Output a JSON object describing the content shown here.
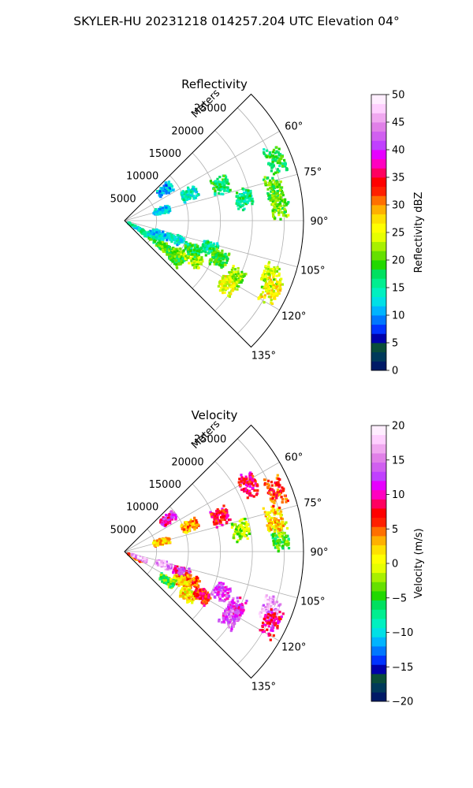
{
  "figure": {
    "suptitle": "SKYLER-HU  20231218  014257.204 UTC Elevation 04°"
  },
  "chart_data": [
    {
      "type": "heatmap",
      "projection": "polar-sector",
      "title": "Reflectivity",
      "range_label": "Meters",
      "range_ticks": [
        5000,
        10000,
        15000,
        20000,
        25000
      ],
      "range_tick_labels": [
        "5000",
        "10000",
        "15000",
        "20000",
        "25000"
      ],
      "rmax": 28000,
      "theta_ticks": [
        60,
        75,
        90,
        105,
        120,
        135
      ],
      "theta_tick_labels": [
        "60°",
        "75°",
        "90°",
        "105°",
        "120°",
        "135°"
      ],
      "theta_range": [
        45,
        135
      ],
      "theta_zero": "north",
      "theta_direction": "clockwise",
      "grid": true,
      "colorbar": {
        "label": "Reflectivity dBZ",
        "min": 0,
        "max": 50,
        "ticks": [
          0,
          5,
          10,
          15,
          20,
          25,
          30,
          35,
          40,
          45,
          50
        ],
        "tick_labels": [
          "0",
          "5",
          "10",
          "15",
          "20",
          "25",
          "30",
          "35",
          "40",
          "45",
          "50"
        ],
        "colors": [
          "#001a66",
          "#003a5a",
          "#0a4d3a",
          "#0000aa",
          "#0033ff",
          "#0077ff",
          "#00b4ff",
          "#00e0e6",
          "#00f0c0",
          "#00ee90",
          "#00e060",
          "#22d800",
          "#66e000",
          "#a8f000",
          "#e6ff00",
          "#ffff00",
          "#ffe000",
          "#ffb000",
          "#ff7000",
          "#ff2000",
          "#ff0000",
          "#ff0060",
          "#ff00c0",
          "#e600ff",
          "#c040ff",
          "#d060f0",
          "#e080e8",
          "#f0a8f0",
          "#ffd0ff",
          "#ffeeff"
        ]
      },
      "echo_regions": [
        {
          "az": 120,
          "range_km": 2.0,
          "value": 14
        },
        {
          "az": 122,
          "range_km": 4.5,
          "value": 17
        },
        {
          "az": 116,
          "range_km": 5.5,
          "value": 13
        },
        {
          "az": 111,
          "range_km": 6.0,
          "value": 12
        },
        {
          "az": 110,
          "range_km": 8.5,
          "value": 13
        },
        {
          "az": 124,
          "range_km": 7.5,
          "value": 20
        },
        {
          "az": 122,
          "range_km": 10.0,
          "value": 22
        },
        {
          "az": 127,
          "range_km": 10.0,
          "value": 19
        },
        {
          "az": 119,
          "range_km": 12.5,
          "value": 23
        },
        {
          "az": 113,
          "range_km": 11.5,
          "value": 18
        },
        {
          "az": 108,
          "range_km": 14.0,
          "value": 16
        },
        {
          "az": 112,
          "range_km": 16.0,
          "value": 20
        },
        {
          "az": 117,
          "range_km": 19.5,
          "value": 22
        },
        {
          "az": 122,
          "range_km": 19.0,
          "value": 25
        },
        {
          "az": 111,
          "range_km": 24.5,
          "value": 23
        },
        {
          "az": 115,
          "range_km": 25.5,
          "value": 26
        },
        {
          "az": 85,
          "range_km": 24.5,
          "value": 21
        },
        {
          "az": 78,
          "range_km": 24.0,
          "value": 20
        },
        {
          "az": 68,
          "range_km": 25.5,
          "value": 18
        },
        {
          "az": 80,
          "range_km": 19.0,
          "value": 16
        },
        {
          "az": 70,
          "range_km": 16.0,
          "value": 17
        },
        {
          "az": 68,
          "range_km": 11.0,
          "value": 14
        },
        {
          "az": 53,
          "range_km": 8.0,
          "value": 11
        },
        {
          "az": 75,
          "range_km": 6.0,
          "value": 12
        }
      ]
    },
    {
      "type": "heatmap",
      "projection": "polar-sector",
      "title": "Velocity",
      "range_label": "Meters",
      "range_ticks": [
        5000,
        10000,
        15000,
        20000,
        25000
      ],
      "range_tick_labels": [
        "5000",
        "10000",
        "15000",
        "20000",
        "25000"
      ],
      "rmax": 28000,
      "theta_ticks": [
        60,
        75,
        90,
        105,
        120,
        135
      ],
      "theta_tick_labels": [
        "60°",
        "75°",
        "90°",
        "105°",
        "120°",
        "135°"
      ],
      "theta_range": [
        45,
        135
      ],
      "theta_zero": "north",
      "theta_direction": "clockwise",
      "grid": true,
      "colorbar": {
        "label": "Velocity (m/s)",
        "min": -20,
        "max": 20,
        "ticks": [
          -20,
          -15,
          -10,
          -5,
          0,
          5,
          10,
          15,
          20
        ],
        "tick_labels": [
          "−20",
          "−15",
          "−10",
          "−5",
          "0",
          "5",
          "10",
          "15",
          "20"
        ],
        "colors": [
          "#001a66",
          "#003a5a",
          "#0a4d3a",
          "#0000aa",
          "#0033ff",
          "#0077ff",
          "#00b4ff",
          "#00e0e6",
          "#00f0c0",
          "#00ee90",
          "#00e060",
          "#22d800",
          "#66e000",
          "#a8f000",
          "#e6ff00",
          "#ffff00",
          "#ffe000",
          "#ffb000",
          "#ff7000",
          "#ff2000",
          "#ff0000",
          "#ff0060",
          "#ff00c0",
          "#e600ff",
          "#c040ff",
          "#d060f0",
          "#e080e8",
          "#f0a8f0",
          "#ffd0ff",
          "#ffeeff"
        ]
      },
      "echo_regions": [
        {
          "az": 120,
          "range_km": 2.0,
          "value": 4
        },
        {
          "az": 113,
          "range_km": 2.5,
          "value": 16
        },
        {
          "az": 108,
          "range_km": 6.5,
          "value": 16
        },
        {
          "az": 110,
          "range_km": 9.5,
          "value": 11
        },
        {
          "az": 114,
          "range_km": 11.5,
          "value": 5
        },
        {
          "az": 118,
          "range_km": 10.0,
          "value": 2
        },
        {
          "az": 124,
          "range_km": 8.0,
          "value": -4
        },
        {
          "az": 124,
          "range_km": 12.0,
          "value": 1
        },
        {
          "az": 120,
          "range_km": 14.0,
          "value": 7
        },
        {
          "az": 112,
          "range_km": 16.5,
          "value": 13
        },
        {
          "az": 117,
          "range_km": 19.5,
          "value": 12
        },
        {
          "az": 122,
          "range_km": 19.5,
          "value": 13
        },
        {
          "az": 111,
          "range_km": 24.5,
          "value": 16
        },
        {
          "az": 116,
          "range_km": 25.5,
          "value": 9
        },
        {
          "az": 85,
          "range_km": 24.5,
          "value": -4
        },
        {
          "az": 78,
          "range_km": 24.0,
          "value": 2
        },
        {
          "az": 68,
          "range_km": 25.5,
          "value": 6
        },
        {
          "az": 62,
          "range_km": 22.0,
          "value": 8
        },
        {
          "az": 80,
          "range_km": 18.5,
          "value": -2
        },
        {
          "az": 70,
          "range_km": 16.0,
          "value": 8
        },
        {
          "az": 68,
          "range_km": 11.0,
          "value": 3
        },
        {
          "az": 53,
          "range_km": 8.5,
          "value": 11
        },
        {
          "az": 75,
          "range_km": 6.0,
          "value": 2
        }
      ]
    }
  ]
}
